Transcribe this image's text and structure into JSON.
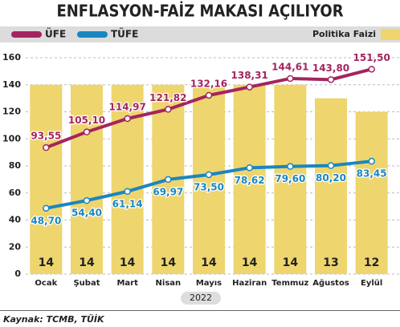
{
  "chart_data": {
    "type": "bar_line",
    "title": "ENFLASYON-FAİZ MAKASI AÇILIYOR",
    "x_label": "2022",
    "source": "Kaynak: TCMB, TÜİK",
    "categories": [
      "Ocak",
      "Şubat",
      "Mart",
      "Nisan",
      "Mayıs",
      "Haziran",
      "Temmuz",
      "Ağustos",
      "Eylül"
    ],
    "series": [
      {
        "name": "ÜFE",
        "color": "#a3255f",
        "type": "line",
        "values": [
          93.55,
          105.1,
          114.97,
          121.82,
          132.16,
          138.31,
          144.61,
          143.8,
          151.5
        ],
        "value_labels": [
          "93,55",
          "105,10",
          "114,97",
          "121,82",
          "132,16",
          "138,31",
          "144,61",
          "143,80",
          "151,50"
        ]
      },
      {
        "name": "TÜFE",
        "color": "#1a86c0",
        "type": "line",
        "values": [
          48.7,
          54.4,
          61.14,
          69.97,
          73.5,
          78.62,
          79.6,
          80.2,
          83.45
        ],
        "value_labels": [
          "48,70",
          "54,40",
          "61,14",
          "69,97",
          "73,50",
          "78,62",
          "79,60",
          "80,20",
          "83,45"
        ]
      },
      {
        "name": "Politika Faizi",
        "color": "#eed56e",
        "type": "bar",
        "axis": "y2",
        "values": [
          14,
          14,
          14,
          14,
          14,
          14,
          14,
          13,
          12
        ]
      }
    ],
    "ylim": [
      0,
      160
    ],
    "yticks": [
      0,
      20,
      40,
      60,
      80,
      100,
      120,
      140,
      160
    ],
    "y2lim": [
      0,
      16
    ],
    "grid": true
  }
}
